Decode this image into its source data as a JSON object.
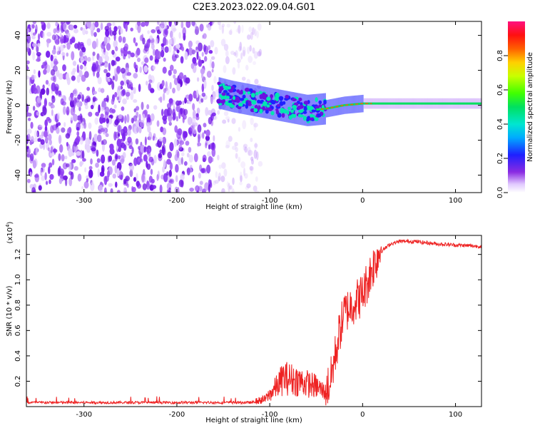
{
  "title": "C2E3.2023.022.09.04.G01",
  "colors": {
    "snr_line": "#ee2222",
    "spectrogram_noise": "#7a22ee",
    "axes": "#000000"
  },
  "chart_data": [
    {
      "type": "heatmap",
      "name": "spectrogram",
      "xlabel": "Height of straight line (km)",
      "ylabel": "Frequency (Hz)",
      "xlim": [
        -362,
        128
      ],
      "ylim": [
        -50,
        48
      ],
      "xticks": [
        -300,
        -200,
        -100,
        0,
        100
      ],
      "xtick_labels": [
        "-300",
        "-200",
        "-100",
        "0",
        "100"
      ],
      "yticks": [
        -40,
        -20,
        0,
        20,
        40
      ],
      "ytick_labels": [
        "-40",
        "-20",
        "0",
        "20",
        "40"
      ],
      "noise_region": [
        -362,
        -110
      ],
      "signal_trace": {
        "x": [
          -155,
          -140,
          -120,
          -100,
          -80,
          -60,
          -40,
          -20,
          0,
          40,
          80,
          128
        ],
        "freq": [
          7,
          5,
          3,
          1,
          -1,
          -3,
          -2,
          0,
          1,
          1,
          1,
          1
        ]
      },
      "colorbar": {
        "label": "Normalized spectral amplitude",
        "range": [
          0,
          1
        ],
        "ticks": [
          0,
          0.2,
          0.4,
          0.6,
          0.8
        ],
        "tick_labels": [
          "0.0",
          "0.2",
          "0.4",
          "0.6",
          "0.8"
        ]
      }
    },
    {
      "type": "line",
      "name": "snr",
      "xlabel": "Height of straight line (km)",
      "ylabel": "SNR (10 * v/v)",
      "exponent_label": "(x10",
      "exponent_power": "4",
      "exponent_close": ")",
      "xlim": [
        -362,
        128
      ],
      "ylim": [
        0,
        1.35
      ],
      "xticks": [
        -300,
        -200,
        -100,
        0,
        100
      ],
      "xtick_labels": [
        "-300",
        "-200",
        "-100",
        "0",
        "100"
      ],
      "yticks": [
        0.2,
        0.4,
        0.6,
        0.8,
        1.0,
        1.2
      ],
      "ytick_labels": [
        "0.2",
        "0.4",
        "0.6",
        "0.8",
        "1.0",
        "1.2"
      ],
      "envelope": {
        "x": [
          -362,
          -140,
          -120,
          -105,
          -95,
          -85,
          -70,
          -50,
          -40,
          -35,
          -30,
          -25,
          -20,
          -10,
          0,
          10,
          20,
          30,
          40,
          55,
          80,
          128
        ],
        "y": [
          0.03,
          0.03,
          0.03,
          0.05,
          0.12,
          0.2,
          0.18,
          0.14,
          0.1,
          0.15,
          0.35,
          0.55,
          0.7,
          0.78,
          0.85,
          1.05,
          1.22,
          1.28,
          1.3,
          1.3,
          1.28,
          1.26
        ]
      }
    }
  ]
}
